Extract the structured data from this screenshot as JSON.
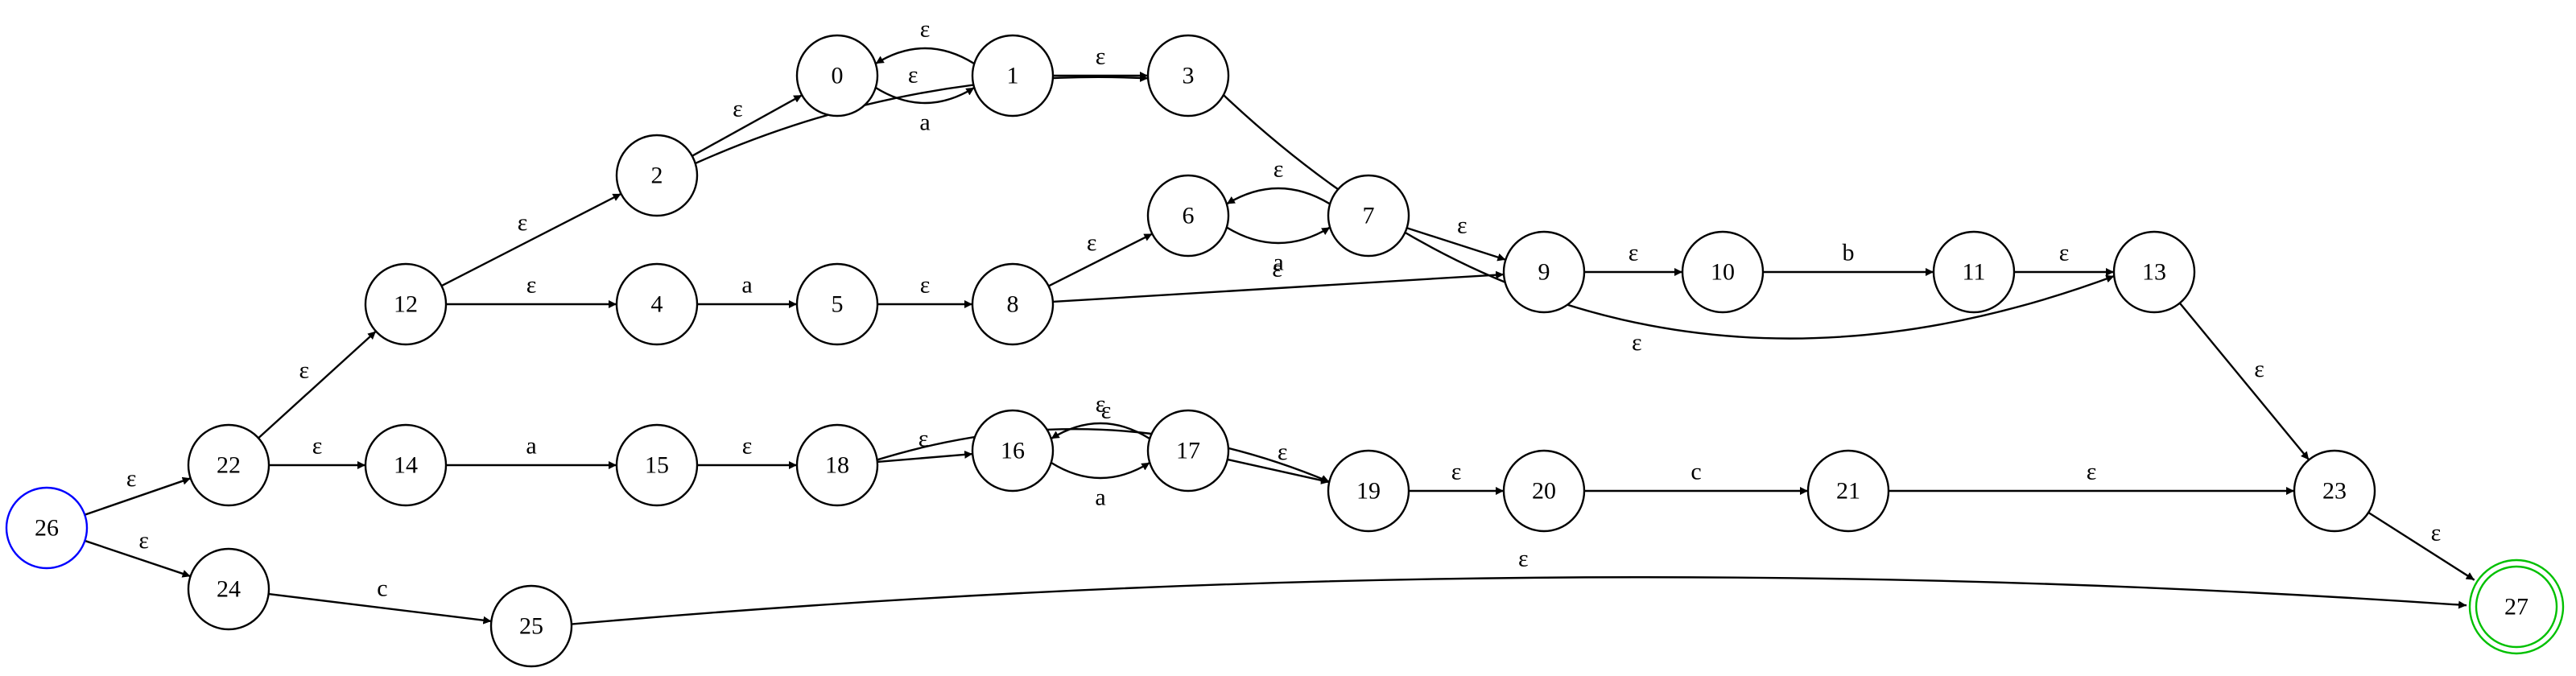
{
  "diagram": {
    "start_state": "26",
    "accept_states": [
      "27"
    ],
    "colors": {
      "start_ring": "#0000ff",
      "accept_ring": "#00c000",
      "edge": "#000000"
    },
    "states": [
      "0",
      "1",
      "2",
      "3",
      "4",
      "5",
      "6",
      "7",
      "8",
      "9",
      "10",
      "11",
      "12",
      "13",
      "14",
      "15",
      "16",
      "17",
      "18",
      "19",
      "20",
      "21",
      "22",
      "23",
      "24",
      "25",
      "26",
      "27"
    ],
    "transitions": [
      {
        "from": "0",
        "to": "1",
        "label": "a"
      },
      {
        "from": "1",
        "to": "0",
        "label": "ε"
      },
      {
        "from": "1",
        "to": "3",
        "label": "ε"
      },
      {
        "from": "2",
        "to": "0",
        "label": "ε"
      },
      {
        "from": "2",
        "to": "3",
        "label": "ε"
      },
      {
        "from": "3",
        "to": "13",
        "label": "ε"
      },
      {
        "from": "12",
        "to": "2",
        "label": "ε"
      },
      {
        "from": "12",
        "to": "4",
        "label": "ε"
      },
      {
        "from": "4",
        "to": "5",
        "label": "a"
      },
      {
        "from": "5",
        "to": "8",
        "label": "ε"
      },
      {
        "from": "8",
        "to": "6",
        "label": "ε"
      },
      {
        "from": "8",
        "to": "9",
        "label": "ε"
      },
      {
        "from": "6",
        "to": "7",
        "label": "a"
      },
      {
        "from": "7",
        "to": "6",
        "label": "ε"
      },
      {
        "from": "7",
        "to": "9",
        "label": "ε"
      },
      {
        "from": "9",
        "to": "10",
        "label": "ε"
      },
      {
        "from": "10",
        "to": "11",
        "label": "b"
      },
      {
        "from": "11",
        "to": "13",
        "label": "ε"
      },
      {
        "from": "13",
        "to": "23",
        "label": "ε"
      },
      {
        "from": "22",
        "to": "12",
        "label": "ε"
      },
      {
        "from": "22",
        "to": "14",
        "label": "ε"
      },
      {
        "from": "14",
        "to": "15",
        "label": "a"
      },
      {
        "from": "15",
        "to": "18",
        "label": "ε"
      },
      {
        "from": "18",
        "to": "16",
        "label": "ε"
      },
      {
        "from": "18",
        "to": "19",
        "label": "ε"
      },
      {
        "from": "16",
        "to": "17",
        "label": "a"
      },
      {
        "from": "17",
        "to": "16",
        "label": "ε"
      },
      {
        "from": "17",
        "to": "19",
        "label": "ε"
      },
      {
        "from": "19",
        "to": "20",
        "label": "ε"
      },
      {
        "from": "20",
        "to": "21",
        "label": "c"
      },
      {
        "from": "21",
        "to": "23",
        "label": "ε"
      },
      {
        "from": "23",
        "to": "27",
        "label": "ε"
      },
      {
        "from": "26",
        "to": "22",
        "label": "ε"
      },
      {
        "from": "26",
        "to": "24",
        "label": "ε"
      },
      {
        "from": "24",
        "to": "25",
        "label": "c"
      },
      {
        "from": "25",
        "to": "27",
        "label": "ε"
      }
    ]
  }
}
